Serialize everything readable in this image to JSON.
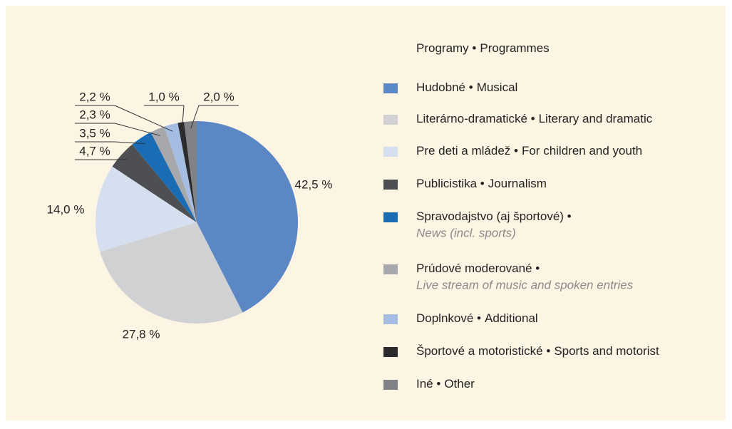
{
  "chart_data": {
    "type": "pie",
    "legend_title": "Programy •",
    "legend_title_en": "Programmes",
    "categories": [
      "Hudobné •",
      "Literárno-dramatické •",
      "Pre deti a mládež •",
      "Publicistika •",
      "Spravodajstvo (aj športové) •",
      "Prúdové moderované •",
      "Doplnkové •",
      "Športové a motoristické •",
      "Iné •"
    ],
    "categories_en": [
      "Musical",
      "Literary and dramatic",
      "For children and youth",
      "Journalism",
      "News (incl. sports)",
      "Live stream of music and spoken entries",
      "Additional",
      "Sports and motorist",
      "Other"
    ],
    "values": [
      42.5,
      27.8,
      14.0,
      4.7,
      3.5,
      2.3,
      2.2,
      1.0,
      2.0
    ],
    "value_labels": [
      "42,5 %",
      "27,8 %",
      "14,0 %",
      "4,7 %",
      "3,5 %",
      "2,3 %",
      "2,2 %",
      "1,0 %",
      "2,0 %"
    ],
    "colors": [
      "#5b87c5",
      "#d0d1d3",
      "#d5dff0",
      "#4d4f53",
      "#1a6db5",
      "#a6a8ab",
      "#a5bde3",
      "#2b2b2d",
      "#818285"
    ],
    "legend": "right"
  }
}
